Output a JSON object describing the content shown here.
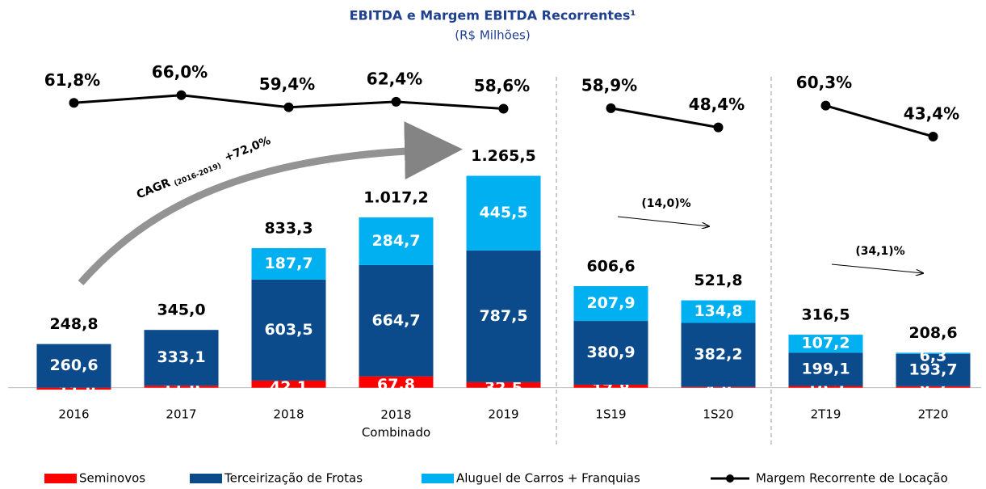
{
  "chart_data": {
    "type": "bar",
    "title": "EBITDA e Margem EBITDA Recorrentes¹",
    "subtitle": "(R$ Milhões)",
    "categories": [
      "2016",
      "2017",
      "2018",
      "2018 Combinado",
      "2019",
      "1S19",
      "1S20",
      "2T19",
      "2T20"
    ],
    "ylim": [
      -50,
      1350
    ],
    "y2lim": [
      20,
      80
    ],
    "series": [
      {
        "name": "Seminovos",
        "color": "#ff0000",
        "values": [
          -11.8,
          11.9,
          42.1,
          67.8,
          32.5,
          17.8,
          4.8,
          10.2,
          8.7
        ],
        "value_labels": [
          "-11,8",
          "11,9",
          "42,1",
          "67,8",
          "32,5",
          "17,8",
          "4,8",
          "10,2",
          "8,7"
        ]
      },
      {
        "name": "Terceirização de Frotas",
        "color": "#0b4a8b",
        "values": [
          260.6,
          333.1,
          603.5,
          664.7,
          787.5,
          380.9,
          382.2,
          199.1,
          193.7
        ],
        "value_labels": [
          "260,6",
          "333,1",
          "603,5",
          "664,7",
          "787,5",
          "380,9",
          "382,2",
          "199,1",
          "193,7"
        ]
      },
      {
        "name": "Aluguel de Carros + Franquias",
        "color": "#00b0f0",
        "values": [
          null,
          null,
          187.7,
          284.7,
          445.5,
          207.9,
          134.8,
          107.2,
          6.3
        ],
        "value_labels": [
          null,
          null,
          "187,7",
          "284,7",
          "445,5",
          "207,9",
          "134,8",
          "107,2",
          "6,3"
        ]
      },
      {
        "name": "Margem Recorrente de Locação",
        "color": "#000000",
        "type": "line",
        "axis": "y2",
        "values": [
          61.8,
          66.0,
          59.4,
          62.4,
          58.6,
          58.9,
          48.4,
          60.3,
          43.4
        ],
        "value_labels": [
          "61,8%",
          "66,0%",
          "59,4%",
          "62,4%",
          "58,6%",
          "58,9%",
          "48,4%",
          "60,3%",
          "43,4%"
        ]
      }
    ],
    "totals": {
      "values": [
        248.8,
        345.0,
        833.3,
        1017.2,
        1265.5,
        606.6,
        521.8,
        316.5,
        208.6
      ],
      "value_labels": [
        "248,8",
        "345,0",
        "833,3",
        "1.017,2",
        "1.265,5",
        "606,6",
        "521,8",
        "316,5",
        "208,6"
      ]
    },
    "annotations": {
      "cagr": "CAGR",
      "cagr_period": "(2016-2019)",
      "cagr_value": "+72,0%",
      "change_1s": "(14,0)%",
      "change_2t": "(34,1)%"
    }
  }
}
